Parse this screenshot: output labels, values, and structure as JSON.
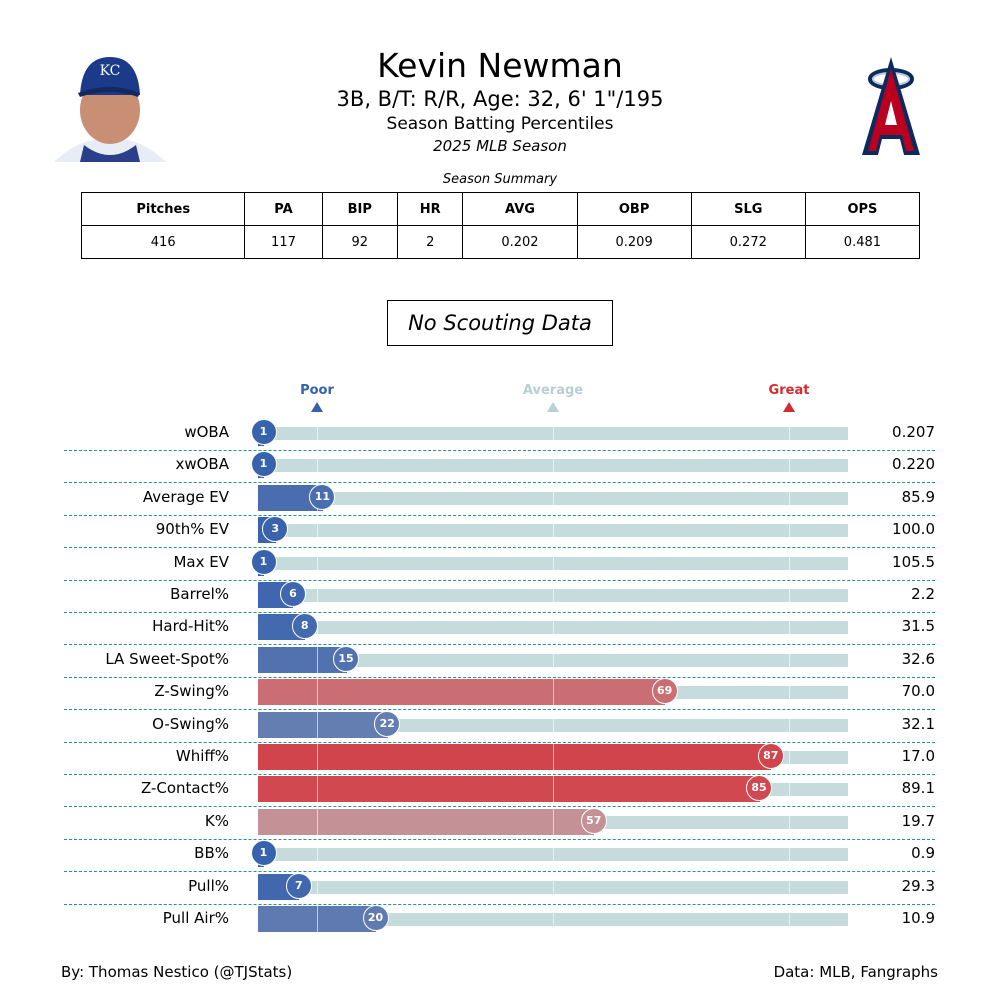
{
  "header": {
    "title": "Kevin Newman",
    "bio": "3B, B/T: R/R, Age: 32, 6' 1\"/195",
    "subtitle": "Season Batting Percentiles",
    "season": "2025 MLB Season"
  },
  "summary": {
    "caption": "Season Summary",
    "columns": [
      "Pitches",
      "PA",
      "BIP",
      "HR",
      "AVG",
      "OBP",
      "SLG",
      "OPS"
    ],
    "values": [
      "416",
      "117",
      "92",
      "2",
      "0.202",
      "0.209",
      "0.272",
      "0.481"
    ]
  },
  "scouting": "No Scouting Data",
  "scale": {
    "poor": "Poor",
    "average": "Average",
    "great": "Great",
    "poor_color": "#3661ad",
    "average_color": "#b7d0d3",
    "great_color": "#d62a2f"
  },
  "metrics": [
    {
      "name": "wOBA",
      "percentile": 1,
      "value": "0.207"
    },
    {
      "name": "xwOBA",
      "percentile": 1,
      "value": "0.220"
    },
    {
      "name": "Average EV",
      "percentile": 11,
      "value": "85.9"
    },
    {
      "name": "90th% EV",
      "percentile": 3,
      "value": "100.0"
    },
    {
      "name": "Max EV",
      "percentile": 1,
      "value": "105.5"
    },
    {
      "name": "Barrel%",
      "percentile": 6,
      "value": "2.2"
    },
    {
      "name": "Hard-Hit%",
      "percentile": 8,
      "value": "31.5"
    },
    {
      "name": "LA Sweet-Spot%",
      "percentile": 15,
      "value": "32.6"
    },
    {
      "name": "Z-Swing%",
      "percentile": 69,
      "value": "70.0"
    },
    {
      "name": "O-Swing%",
      "percentile": 22,
      "value": "32.1"
    },
    {
      "name": "Whiff%",
      "percentile": 87,
      "value": "17.0"
    },
    {
      "name": "Z-Contact%",
      "percentile": 85,
      "value": "89.1"
    },
    {
      "name": "K%",
      "percentile": 57,
      "value": "19.7"
    },
    {
      "name": "BB%",
      "percentile": 1,
      "value": "0.9"
    },
    {
      "name": "Pull%",
      "percentile": 7,
      "value": "29.3"
    },
    {
      "name": "Pull Air%",
      "percentile": 20,
      "value": "10.9"
    }
  ],
  "footer": {
    "left": "By: Thomas Nestico (@TJStats)",
    "right": "Data: MLB, Fangraphs"
  },
  "logos": {
    "player_team": "KC",
    "opponent_team": "A"
  }
}
